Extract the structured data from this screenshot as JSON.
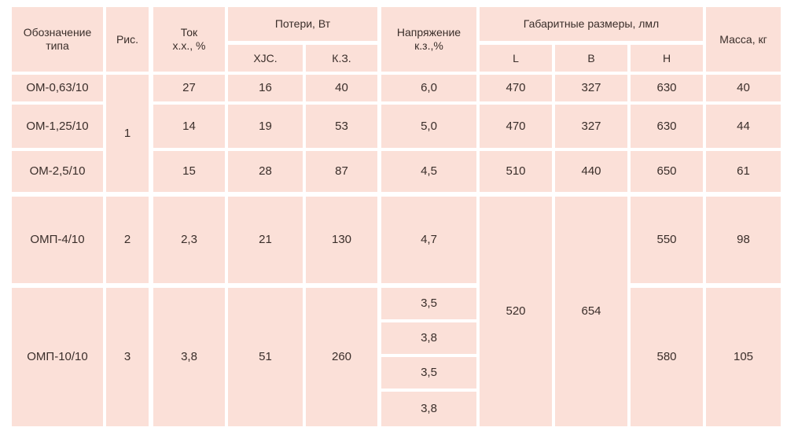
{
  "headers": {
    "type": "Обозначение\nтипа",
    "fig": "Рис.",
    "current": "Ток\nх.х., %",
    "losses": "Потери, Вт",
    "losses_xx": "ХJС.",
    "losses_kz": "К.З.",
    "voltage": "Напряжение\nк.з.,%",
    "dims": "Габаритные размеры, лмл",
    "dim_L": "L",
    "dim_B": "B",
    "dim_H": "H",
    "mass": "Масса, кг"
  },
  "rows": [
    {
      "type": "ОМ-0,63/10",
      "current": "27",
      "xx": "16",
      "kz": "40",
      "voltage": "6,0",
      "L": "470",
      "B": "327",
      "H": "630",
      "mass": "40"
    },
    {
      "type": "ОМ-1,25/10",
      "current": "14",
      "xx": "19",
      "kz": "53",
      "voltage": "5,0",
      "L": "470",
      "B": "327",
      "H": "630",
      "mass": "44"
    },
    {
      "type": "ОМ-2,5/10",
      "current": "15",
      "xx": "28",
      "kz": "87",
      "voltage": "4,5",
      "L": "510",
      "B": "440",
      "H": "650",
      "mass": "61"
    },
    {
      "type": "ОМП-4/10",
      "fig": "2",
      "current": "2,3",
      "xx": "21",
      "kz": "130",
      "voltage": "4,7",
      "H": "550",
      "mass": "98"
    },
    {
      "type": "ОМП-10/10",
      "fig": "3",
      "current": "3,8",
      "xx": "51",
      "kz": "260",
      "voltages": [
        "3,5",
        "3,8",
        "3,5",
        "3,8"
      ],
      "H": "580",
      "mass": "105"
    }
  ],
  "merged": {
    "fig_group1": "1",
    "L_shared": "520",
    "B_shared": "654"
  }
}
